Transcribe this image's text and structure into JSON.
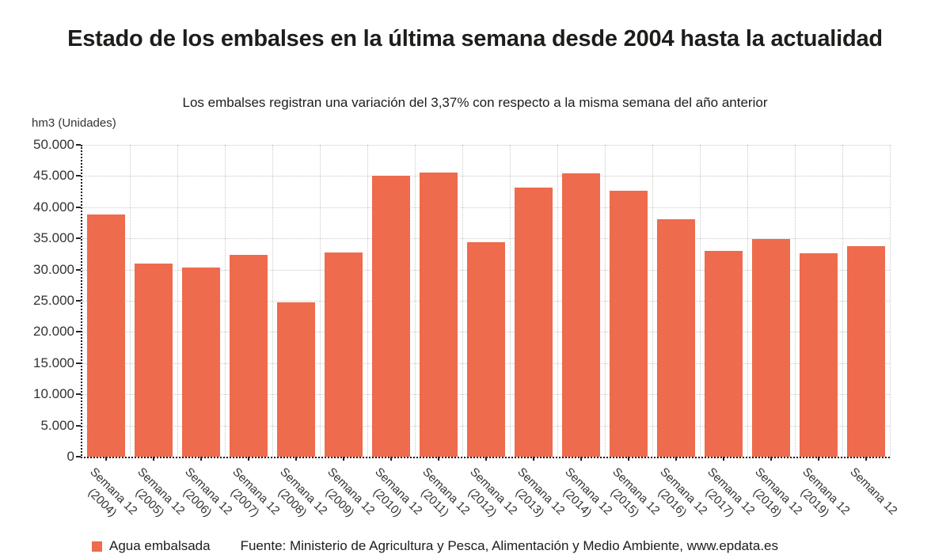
{
  "chart_data": {
    "type": "bar",
    "title": "Estado de los embalses en la última semana desde 2004 hasta la actualidad",
    "subtitle": "Los embalses registran una variación del 3,37% con respecto a la misma semana del año anterior",
    "ylabel": "hm3 (Unidades)",
    "xlabel": "",
    "ylim": [
      0,
      50000
    ],
    "ytick_step": 5000,
    "ytick_labels": [
      "0",
      "5.000",
      "10.000",
      "15.000",
      "20.000",
      "25.000",
      "30.000",
      "35.000",
      "40.000",
      "45.000",
      "50.000"
    ],
    "grid": true,
    "legend_position": "bottom-left",
    "bar_color": "#ee6b4d",
    "categories": [
      "Semana 12 (2004)",
      "Semana 12 (2005)",
      "Semana 12 (2006)",
      "Semana 12 (2007)",
      "Semana 12 (2008)",
      "Semana 12 (2009)",
      "Semana 12 (2010)",
      "Semana 12 (2011)",
      "Semana 12 (2012)",
      "Semana 12 (2013)",
      "Semana 12 (2014)",
      "Semana 12 (2015)",
      "Semana 12 (2016)",
      "Semana 12 (2017)",
      "Semana 12 (2018)",
      "Semana 12 (2019)",
      "Semana 12"
    ],
    "series": [
      {
        "name": "Agua embalsada",
        "values": [
          38800,
          31000,
          30300,
          32300,
          24700,
          32700,
          45000,
          45500,
          34400,
          43100,
          45400,
          42700,
          38100,
          33000,
          34900,
          32600,
          33700
        ]
      }
    ]
  },
  "footer": {
    "source": "Fuente: Ministerio de Agricultura y Pesca, Alimentación y Medio Ambiente, www.epdata.es"
  }
}
